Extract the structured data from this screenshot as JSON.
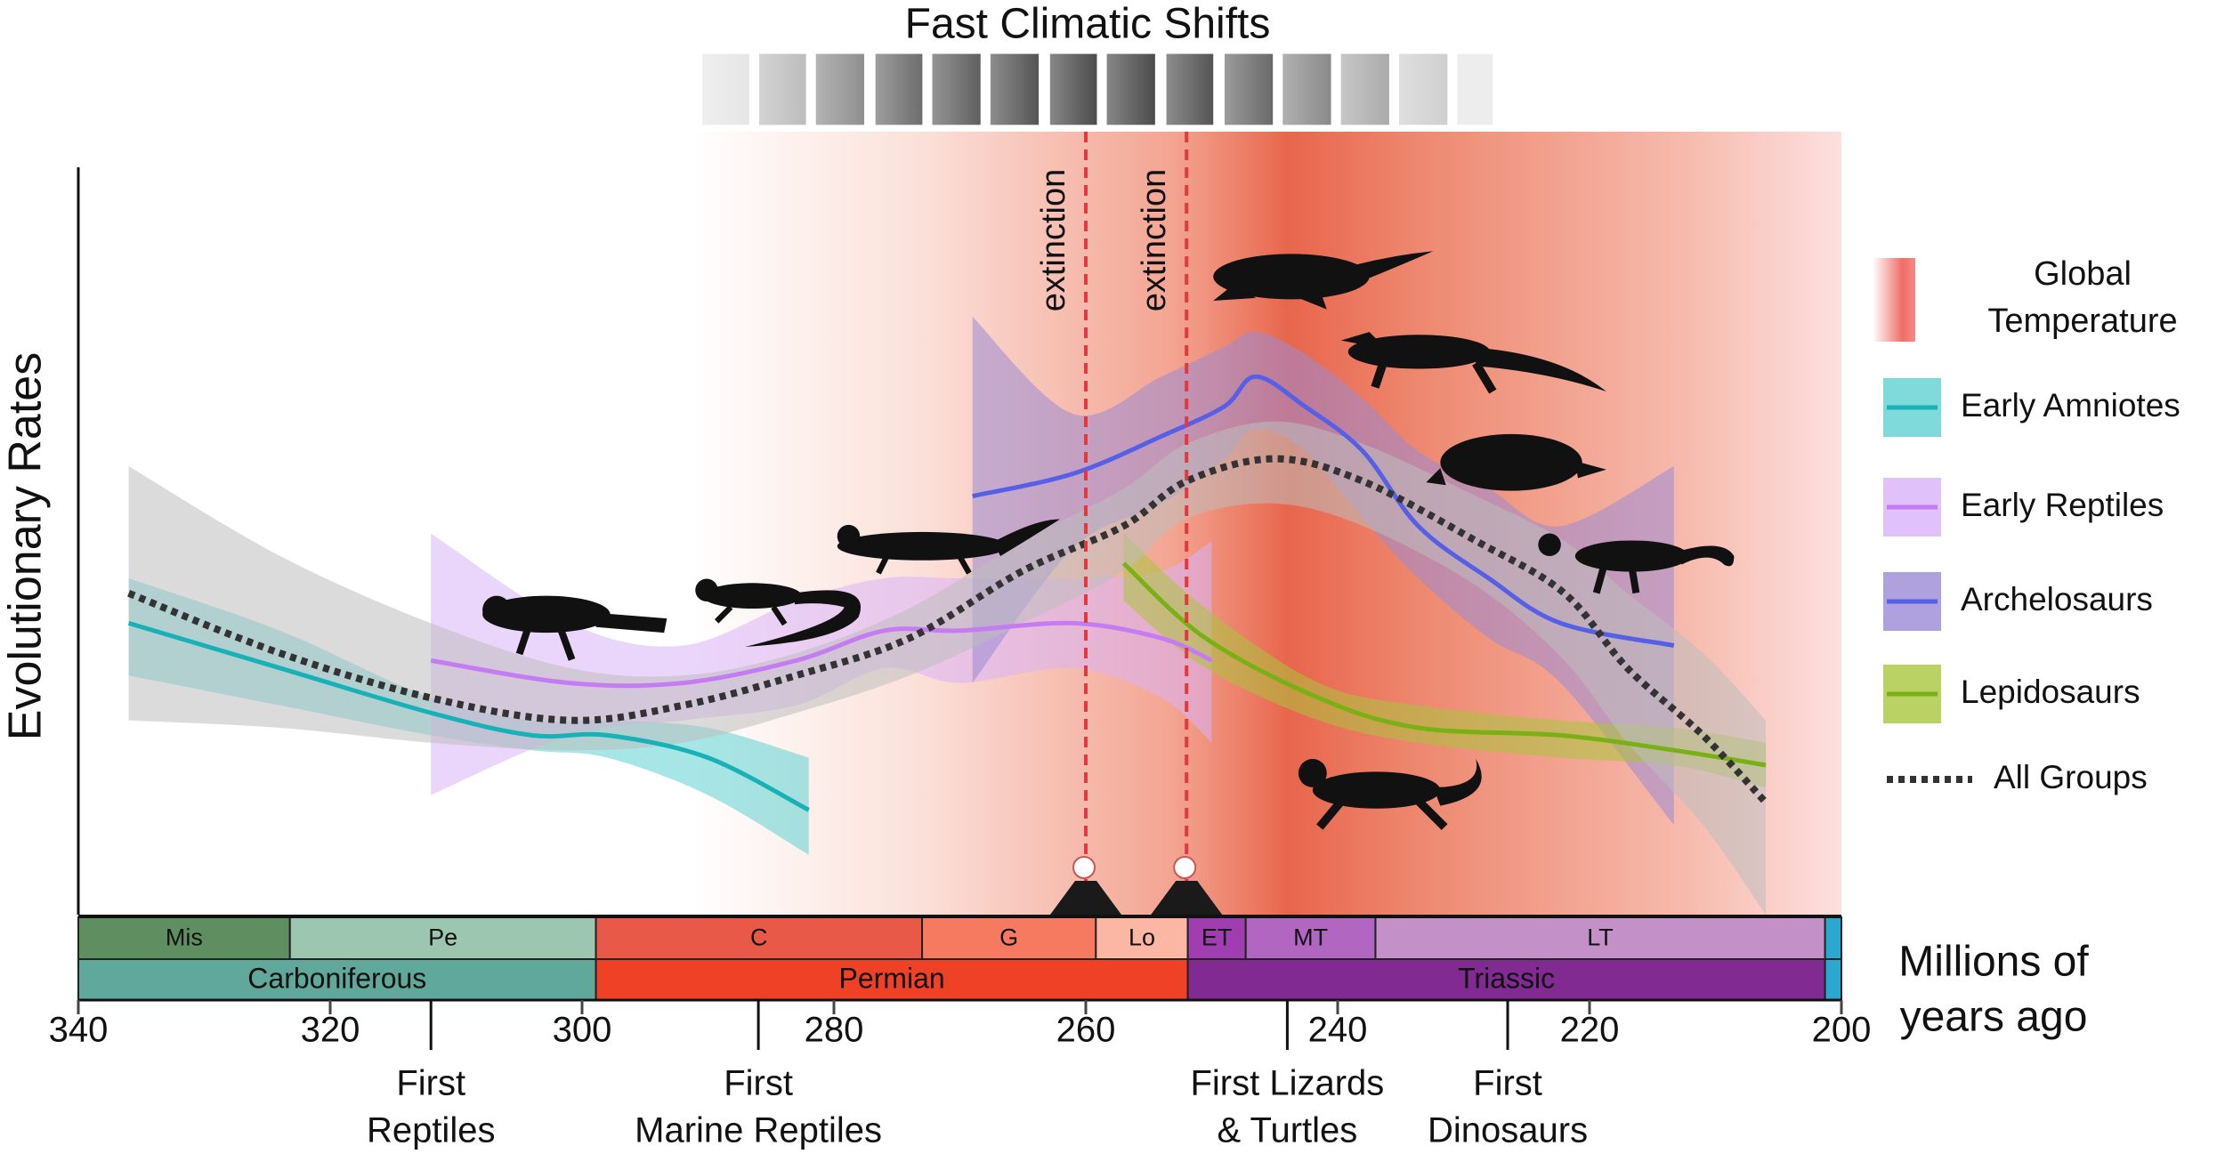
{
  "chart_data": {
    "type": "line",
    "title": "Fast Climatic Shifts",
    "ylabel": "Evolutionary Rates",
    "xlabel": [
      "Millions of",
      "years ago"
    ],
    "xlim": [
      340,
      200
    ],
    "xticks": [
      340,
      320,
      300,
      280,
      260,
      240,
      220,
      200
    ],
    "ylim": [
      0,
      10
    ],
    "legend": "right",
    "temperature_label": [
      "Global",
      "Temperature"
    ],
    "series": [
      {
        "name": "Early Amniotes",
        "color": "#17b2b6",
        "band_color": "#5fd2d2",
        "x": [
          336,
          324,
          312,
          304,
          298,
          290,
          282
        ],
        "values": [
          3.9,
          3.3,
          2.7,
          2.4,
          2.4,
          2.1,
          1.4
        ],
        "upper": [
          4.5,
          3.8,
          2.9,
          2.6,
          2.6,
          2.5,
          2.1
        ],
        "lower": [
          3.2,
          2.8,
          2.4,
          2.2,
          2.1,
          1.6,
          0.8
        ]
      },
      {
        "name": "Early Reptiles",
        "color": "#c57cf2",
        "band_color": "#d9b2f7",
        "x": [
          312,
          301,
          292,
          283,
          276,
          270,
          261,
          254,
          250
        ],
        "values": [
          3.4,
          3.1,
          3.1,
          3.4,
          3.8,
          3.8,
          3.9,
          3.7,
          3.4
        ],
        "upper": [
          5.1,
          3.9,
          3.6,
          4.2,
          4.5,
          4.5,
          4.5,
          4.6,
          5.0
        ],
        "lower": [
          1.6,
          2.4,
          2.6,
          2.8,
          3.3,
          3.1,
          3.3,
          2.9,
          2.3
        ]
      },
      {
        "name": "Archelosaurs",
        "color": "#5560e6",
        "band_color": "#9a8ad4",
        "x": [
          269,
          261,
          254,
          249,
          246.5,
          242.6,
          238,
          233.6,
          228,
          222.3,
          213.3
        ],
        "values": [
          5.6,
          5.9,
          6.4,
          6.8,
          7.2,
          6.8,
          6.2,
          5.2,
          4.5,
          3.9,
          3.6
        ],
        "upper": [
          8.0,
          6.7,
          7.2,
          7.6,
          7.8,
          7.5,
          6.9,
          6.2,
          5.7,
          5.2,
          6.0
        ],
        "lower": [
          3.1,
          4.9,
          5.5,
          6.1,
          6.5,
          6.2,
          5.3,
          4.5,
          3.7,
          3.1,
          1.2
        ]
      },
      {
        "name": "Lepidosaurs",
        "color": "#79b016",
        "band_color": "#a9c53c",
        "x": [
          257,
          250.5,
          241.5,
          233.6,
          222.3,
          213.3,
          206
        ],
        "values": [
          4.7,
          3.7,
          2.9,
          2.5,
          2.4,
          2.2,
          2.0
        ],
        "upper": [
          5.1,
          4.1,
          3.1,
          2.8,
          2.6,
          2.5,
          2.3
        ],
        "lower": [
          4.2,
          3.3,
          2.6,
          2.3,
          2.1,
          2.0,
          1.7
        ]
      },
      {
        "name": "All Groups",
        "color": "#333333",
        "band_color": "#bdbdbd",
        "dash": "dotted",
        "x": [
          336,
          324,
          312,
          301,
          292,
          283,
          274,
          265,
          257,
          252,
          245,
          238,
          229,
          222,
          217,
          211,
          206
        ],
        "values": [
          4.3,
          3.5,
          2.9,
          2.6,
          2.8,
          3.2,
          3.7,
          4.6,
          5.2,
          5.8,
          6.1,
          5.8,
          5.0,
          4.3,
          3.3,
          2.4,
          1.5
        ],
        "upper": [
          6.0,
          4.8,
          3.9,
          3.3,
          3.2,
          3.5,
          4.1,
          5.0,
          5.7,
          6.3,
          6.6,
          6.3,
          5.6,
          5.0,
          4.3,
          3.5,
          2.6
        ],
        "lower": [
          2.6,
          2.5,
          2.3,
          2.2,
          2.3,
          2.7,
          3.2,
          3.9,
          4.6,
          5.3,
          5.5,
          5.2,
          4.4,
          3.4,
          2.3,
          1.2,
          0.0
        ]
      }
    ],
    "extinctions": [
      {
        "x": 260,
        "label": "extinction"
      },
      {
        "x": 252,
        "label": "extinction"
      }
    ],
    "milestones": [
      {
        "x": 312,
        "label": [
          "First",
          "Reptiles"
        ]
      },
      {
        "x": 286,
        "label": [
          "First",
          "Marine Reptiles"
        ]
      },
      {
        "x": 244,
        "label": [
          "First Lizards",
          "& Turtles"
        ]
      },
      {
        "x": 226.5,
        "label": [
          "First",
          "Dinosaurs"
        ]
      }
    ],
    "epochs": [
      {
        "name": "Mis",
        "start": 340,
        "end": 323.2,
        "color": "#5f8f60"
      },
      {
        "name": "Pe",
        "start": 323.2,
        "end": 298.9,
        "color": "#9cc6b0"
      },
      {
        "name": "C",
        "start": 298.9,
        "end": 273,
        "color": "#e85a47"
      },
      {
        "name": "G",
        "start": 273,
        "end": 259.2,
        "color": "#f57a5f"
      },
      {
        "name": "Lo",
        "start": 259.2,
        "end": 251.9,
        "color": "#fbb6a4"
      },
      {
        "name": "ET",
        "start": 251.9,
        "end": 247.3,
        "color": "#a03db1"
      },
      {
        "name": "MT",
        "start": 247.3,
        "end": 237,
        "color": "#b167c1"
      },
      {
        "name": "LT",
        "start": 237,
        "end": 201.3,
        "color": "#c390c8"
      },
      {
        "name": null,
        "start": 201.3,
        "end": 200,
        "color": "#2aa8d0"
      }
    ],
    "periods": [
      {
        "name": "Carboniferous",
        "start": 340,
        "end": 298.9,
        "color": "#5fa89b"
      },
      {
        "name": "Permian",
        "start": 298.9,
        "end": 251.9,
        "color": "#ef4126"
      },
      {
        "name": "Triassic",
        "start": 251.9,
        "end": 201.3,
        "color": "#812b92"
      },
      {
        "name": null,
        "start": 201.3,
        "end": 200,
        "color": "#2aa8d0"
      }
    ]
  }
}
